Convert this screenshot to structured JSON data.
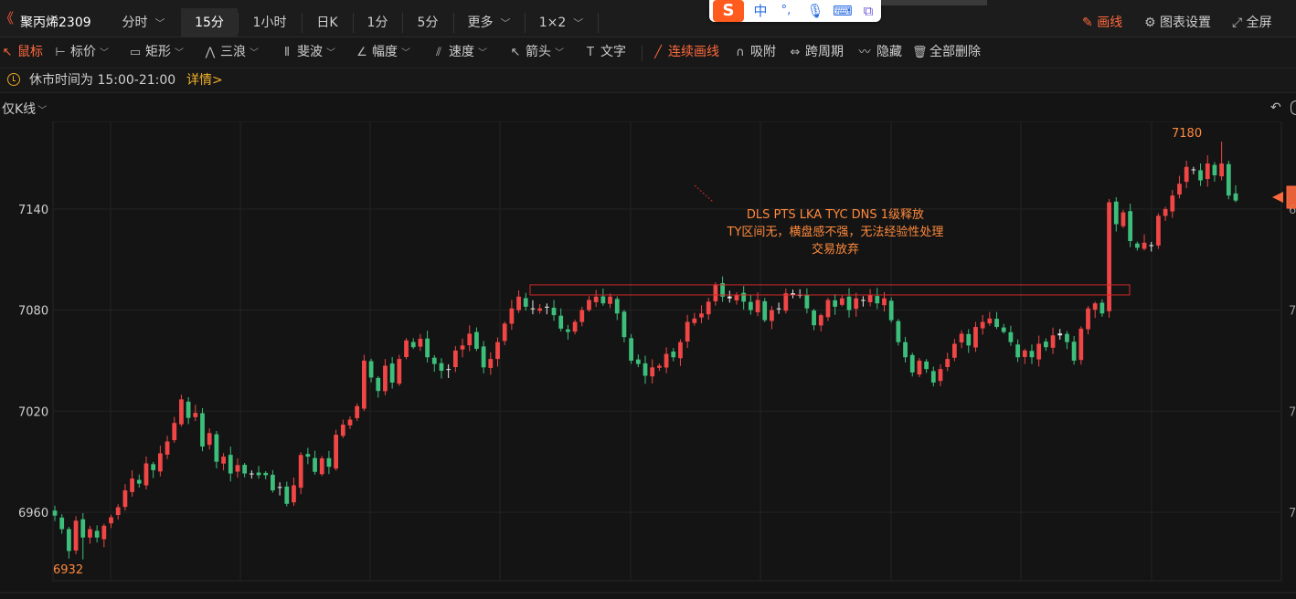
{
  "topbar": {
    "symbol": "聚丙烯2309",
    "tabs": [
      {
        "label": "分时",
        "has_menu": true,
        "active": false
      },
      {
        "label": "15分",
        "has_menu": false,
        "active": true
      },
      {
        "label": "1小时",
        "has_menu": false,
        "active": false
      },
      {
        "label": "日K",
        "has_menu": false,
        "active": false
      },
      {
        "label": "1分",
        "has_menu": false,
        "active": false
      },
      {
        "label": "5分",
        "has_menu": false,
        "active": false
      },
      {
        "label": "更多",
        "has_menu": true,
        "active": false
      },
      {
        "label": "1×2",
        "has_menu": true,
        "active": false
      }
    ],
    "draw_label": "画线",
    "settings_label": "图表设置",
    "fullscreen_label": "全屏"
  },
  "ime": {
    "logo": "S",
    "mode": "中",
    "punct": "°,"
  },
  "toolbar": {
    "items": [
      {
        "label": "鼠标",
        "icon": "cursor-icon",
        "glyph": "↖",
        "has_menu": false,
        "active": true
      },
      {
        "label": "标价",
        "icon": "price-tag-icon",
        "glyph": "⊢",
        "has_menu": true,
        "active": false
      },
      {
        "label": "矩形",
        "icon": "rectangle-icon",
        "glyph": "▭",
        "has_menu": true,
        "active": false
      },
      {
        "label": "三浪",
        "icon": "wave-icon",
        "glyph": "⋀",
        "has_menu": true,
        "active": false
      },
      {
        "label": "斐波",
        "icon": "fibonacci-icon",
        "glyph": "⦀",
        "has_menu": true,
        "active": false
      },
      {
        "label": "幅度",
        "icon": "range-icon",
        "glyph": "∠",
        "has_menu": true,
        "active": false
      },
      {
        "label": "速度",
        "icon": "speed-icon",
        "glyph": "⫽",
        "has_menu": true,
        "active": false
      },
      {
        "label": "箭头",
        "icon": "arrow-icon",
        "glyph": "↖",
        "has_menu": true,
        "active": false
      },
      {
        "label": "文字",
        "icon": "text-icon",
        "glyph": "T",
        "has_menu": false,
        "active": false
      }
    ],
    "continuous_label": "连续画线",
    "snap_label": "吸附",
    "cross_period_label": "跨周期",
    "hide_label": "隐藏",
    "delete_all_label": "全部删除"
  },
  "notice": {
    "text": "休市时间为 15:00-21:00",
    "link": "详情>"
  },
  "chart_header": {
    "filter_label": "仅K线"
  },
  "chart_data": {
    "type": "candlestick",
    "ylim": [
      6930,
      7184
    ],
    "yticks": [
      6960,
      7020,
      7080,
      7140
    ],
    "ytick_labels": [
      "6960",
      "7020",
      "7080",
      "7140"
    ],
    "right_tick_labels": [
      "7",
      "7",
      "7",
      "6"
    ],
    "high_label": "7180",
    "low_label": "6932",
    "annotation": {
      "lines": [
        "DLS PTS LKA TYC DNS  1级释放",
        "TY区间无，横盘感不强，无法经验性处理",
        "交易放弃"
      ]
    },
    "box_range": [
      7089,
      7095
    ],
    "colors": {
      "up": "#f04646",
      "down": "#3dbf7b",
      "doji": "#e6e6e6",
      "annotation": "#ff8a3d",
      "grid": "#232323",
      "box": "#d42a2a"
    },
    "closes": [
      6958,
      6950,
      6937,
      6955,
      6945,
      6950,
      6945,
      6952,
      6957,
      6963,
      6973,
      6980,
      6977,
      6989,
      6985,
      6995,
      7002,
      7013,
      7027,
      7016,
      7019,
      6999,
      7007,
      6990,
      6993,
      6983,
      6988,
      6983,
      6983,
      6982,
      6982,
      6973,
      6975,
      6965,
      6976,
      6994,
      6993,
      6984,
      6992,
      6987,
      7006,
      7012,
      7015,
      7023,
      7050,
      7040,
      7032,
      7047,
      7037,
      7051,
      7062,
      7058,
      7063,
      7052,
      7048,
      7044,
      7045,
      7056,
      7059,
      7066,
      7057,
      7046,
      7051,
      7061,
      7072,
      7081,
      7088,
      7082,
      7081,
      7081,
      7082,
      7077,
      7069,
      7067,
      7073,
      7080,
      7086,
      7088,
      7084,
      7088,
      7078,
      7064,
      7050,
      7048,
      7041,
      7046,
      7047,
      7054,
      7052,
      7061,
      7073,
      7075,
      7078,
      7085,
      7095,
      7088,
      7087,
      7089,
      7085,
      7080,
      7086,
      7074,
      7080,
      7081,
      7090,
      7089,
      7089,
      7081,
      7071,
      7077,
      7086,
      7082,
      7087,
      7080,
      7087,
      7086,
      7089,
      7084,
      7087,
      7074,
      7061,
      7052,
      7043,
      7050,
      7045,
      7037,
      7045,
      7051,
      7060,
      7066,
      7059,
      7070,
      7073,
      7075,
      7070,
      7067,
      7061,
      7052,
      7056,
      7052,
      7060,
      7058,
      7065,
      7065,
      7061,
      7050,
      7069,
      7081,
      7084,
      7078,
      7144,
      7131,
      7138,
      7121,
      7117,
      7120,
      7118,
      7136,
      7140,
      7148,
      7155,
      7165,
      7163,
      7157,
      7167,
      7160,
      7167,
      7148,
      7145
    ],
    "x_range": [
      0,
      169
    ]
  }
}
